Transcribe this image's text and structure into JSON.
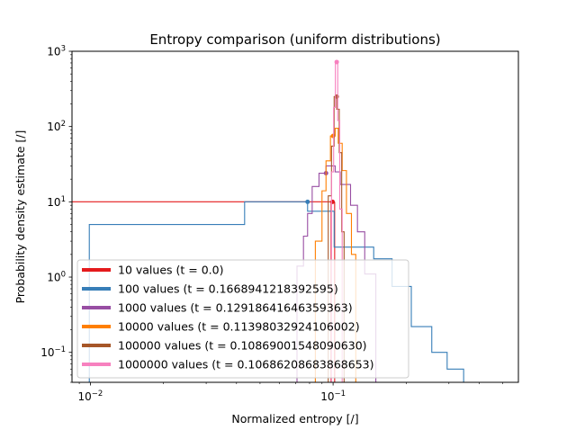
{
  "chart_data": {
    "type": "line",
    "title": "Entropy comparison (uniform distributions)",
    "xlabel": "Normalized entropy [/]",
    "ylabel": "Probability density estimate [/]",
    "xscale": "log",
    "yscale": "log",
    "xlim": [
      0.0084,
      0.58
    ],
    "ylim": [
      0.04,
      1000
    ],
    "x_ticks": [
      {
        "value": 0.01,
        "base": "10",
        "exp": "−2"
      },
      {
        "value": 0.1,
        "base": "10",
        "exp": "−1"
      }
    ],
    "y_ticks": [
      {
        "value": 0.1,
        "base": "10",
        "exp": "−1"
      },
      {
        "value": 1,
        "base": "10",
        "exp": "0"
      },
      {
        "value": 10,
        "base": "10",
        "exp": "1"
      },
      {
        "value": 100,
        "base": "10",
        "exp": "2"
      },
      {
        "value": 1000,
        "base": "10",
        "exp": "3"
      }
    ],
    "legend_position": "lower-left",
    "grid": false,
    "series": [
      {
        "name": "10 values (t = 0.0)",
        "color": "#e41a1c",
        "marker": {
          "x": 0.0995,
          "y": 10
        },
        "steps": [
          [
            0.0084,
            10
          ],
          [
            0.0981,
            10
          ],
          [
            0.0981,
            0.04
          ],
          [
            0.1015,
            0.04
          ],
          [
            0.1015,
            10
          ]
        ]
      },
      {
        "name": "100 values (t = 0.1668941218392595)",
        "color": "#377eb8",
        "marker": {
          "x": 0.0785,
          "y": 10
        },
        "steps": [
          [
            0.0084,
            0.04
          ],
          [
            0.0099,
            0.04
          ],
          [
            0.0099,
            5
          ],
          [
            0.0432,
            5
          ],
          [
            0.0432,
            10
          ],
          [
            0.0785,
            10
          ],
          [
            0.0785,
            7.5
          ],
          [
            0.101,
            7.5
          ],
          [
            0.101,
            2.5
          ],
          [
            0.147,
            2.5
          ],
          [
            0.147,
            1.75
          ],
          [
            0.175,
            1.75
          ],
          [
            0.175,
            0.75
          ],
          [
            0.21,
            0.75
          ],
          [
            0.21,
            0.22
          ],
          [
            0.255,
            0.22
          ],
          [
            0.255,
            0.1
          ],
          [
            0.295,
            0.1
          ],
          [
            0.295,
            0.06
          ],
          [
            0.345,
            0.06
          ],
          [
            0.345,
            0.04
          ]
        ]
      },
      {
        "name": "1000 values (t = 0.12918641646359363)",
        "color": "#984ea3",
        "marker": {
          "x": 0.0935,
          "y": 24
        },
        "steps": [
          [
            0.071,
            0.04
          ],
          [
            0.071,
            1.4
          ],
          [
            0.0755,
            1.4
          ],
          [
            0.0755,
            3.5
          ],
          [
            0.0785,
            3.5
          ],
          [
            0.0785,
            7
          ],
          [
            0.082,
            7
          ],
          [
            0.082,
            16
          ],
          [
            0.0875,
            16
          ],
          [
            0.0875,
            24
          ],
          [
            0.0935,
            24
          ],
          [
            0.0935,
            30
          ],
          [
            0.102,
            30
          ],
          [
            0.102,
            25
          ],
          [
            0.107,
            25
          ],
          [
            0.107,
            17
          ],
          [
            0.118,
            17
          ],
          [
            0.118,
            9
          ],
          [
            0.126,
            9
          ],
          [
            0.126,
            4
          ],
          [
            0.135,
            4
          ],
          [
            0.135,
            1.1
          ],
          [
            0.15,
            1.1
          ],
          [
            0.15,
            0.04
          ]
        ]
      },
      {
        "name": "10000 values (t = 0.11398032924106002)",
        "color": "#ff7f00",
        "marker": {
          "x": 0.1,
          "y": 75
        },
        "steps": [
          [
            0.0845,
            0.04
          ],
          [
            0.0845,
            3
          ],
          [
            0.09,
            3
          ],
          [
            0.09,
            14
          ],
          [
            0.0935,
            14
          ],
          [
            0.0935,
            35
          ],
          [
            0.0975,
            35
          ],
          [
            0.0975,
            75
          ],
          [
            0.102,
            75
          ],
          [
            0.102,
            95
          ],
          [
            0.105,
            95
          ],
          [
            0.105,
            60
          ],
          [
            0.109,
            60
          ],
          [
            0.109,
            26
          ],
          [
            0.1135,
            26
          ],
          [
            0.1135,
            7
          ],
          [
            0.119,
            7
          ],
          [
            0.119,
            2
          ],
          [
            0.124,
            2
          ],
          [
            0.124,
            0.04
          ]
        ]
      },
      {
        "name": "100000 values (t = 0.10869001548090630)",
        "color": "#a65628",
        "marker": {
          "x": 0.1035,
          "y": 250
        },
        "steps": [
          [
            0.0955,
            0.04
          ],
          [
            0.0955,
            12
          ],
          [
            0.0985,
            12
          ],
          [
            0.0985,
            55
          ],
          [
            0.101,
            55
          ],
          [
            0.101,
            250
          ],
          [
            0.1035,
            250
          ],
          [
            0.1035,
            170
          ],
          [
            0.106,
            170
          ],
          [
            0.106,
            45
          ],
          [
            0.1085,
            45
          ],
          [
            0.1085,
            4
          ],
          [
            0.111,
            4
          ],
          [
            0.111,
            0.04
          ]
        ]
      },
      {
        "name": "1000000 values (t = 0.10686208683868653)",
        "color": "#f781bf",
        "marker": {
          "x": 0.1035,
          "y": 720
        },
        "steps": [
          [
            0.0985,
            0.04
          ],
          [
            0.0985,
            25
          ],
          [
            0.1005,
            25
          ],
          [
            0.1005,
            180
          ],
          [
            0.1022,
            180
          ],
          [
            0.1022,
            720
          ],
          [
            0.1045,
            720
          ],
          [
            0.1045,
            120
          ],
          [
            0.1065,
            120
          ],
          [
            0.1065,
            8
          ],
          [
            0.109,
            8
          ],
          [
            0.109,
            0.04
          ]
        ]
      }
    ]
  }
}
